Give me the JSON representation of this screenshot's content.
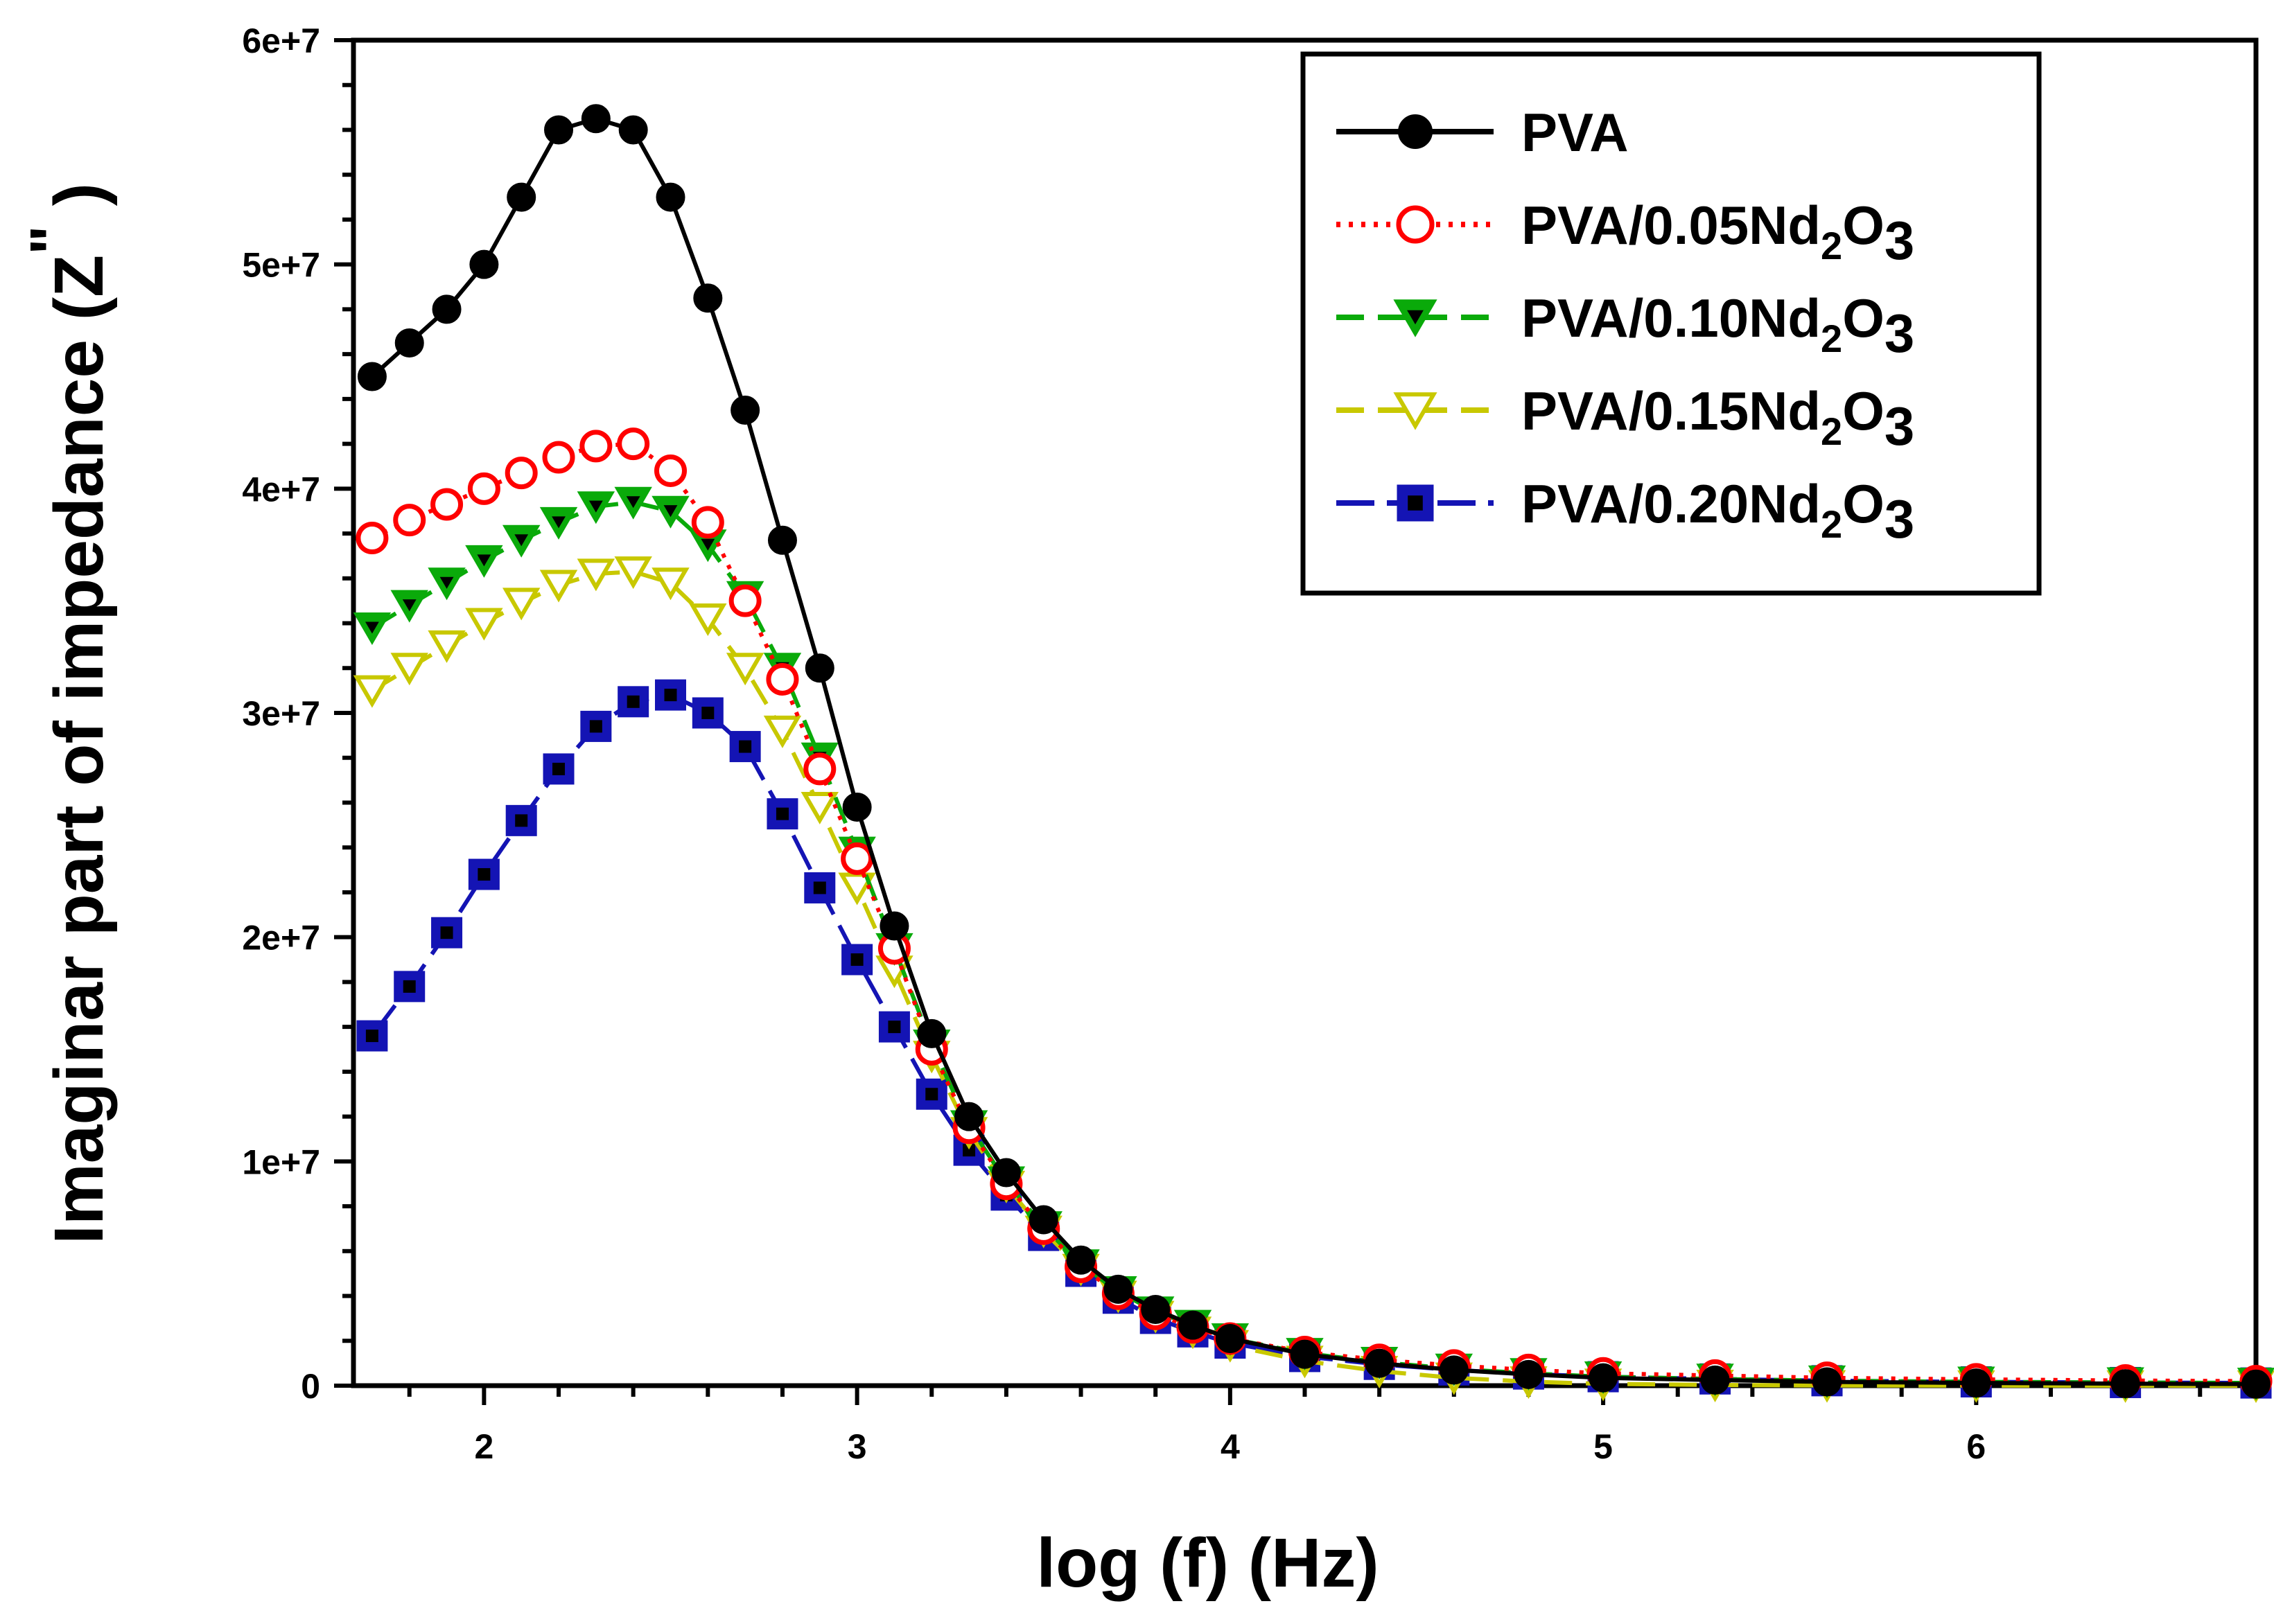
{
  "chart_data": {
    "type": "line",
    "title": "",
    "xlabel": "log (f) (Hz)",
    "ylabel_main": "Imaginar part of impedance (Z",
    "ylabel_sup": "\"",
    "ylabel_close": ")",
    "xlim": [
      1.65,
      6.75
    ],
    "ylim": [
      0,
      60000000
    ],
    "x_ticks": [
      2,
      3,
      4,
      5,
      6
    ],
    "x_tick_labels": [
      "2",
      "3",
      "4",
      "5",
      "6"
    ],
    "y_ticks": [
      0,
      10000000,
      20000000,
      30000000,
      40000000,
      50000000,
      60000000
    ],
    "y_tick_labels": [
      "0",
      "1e+7",
      "2e+7",
      "3e+7",
      "4e+7",
      "5e+7",
      "6e+7"
    ],
    "legend_position": "top-right",
    "x": [
      1.7,
      1.8,
      1.9,
      2.0,
      2.1,
      2.2,
      2.3,
      2.4,
      2.5,
      2.6,
      2.7,
      2.8,
      2.9,
      3.0,
      3.1,
      3.2,
      3.3,
      3.4,
      3.5,
      3.6,
      3.7,
      3.8,
      3.9,
      4.0,
      4.2,
      4.4,
      4.6,
      4.8,
      5.0,
      5.3,
      5.6,
      6.0,
      6.4,
      6.75
    ],
    "series": [
      {
        "name": "PVA",
        "label_main": "PVA",
        "label_sub": "",
        "label_tail": "",
        "color": "#000000",
        "marker": "circle",
        "filled": true,
        "line": "solid",
        "values": [
          45000000,
          46500000,
          48000000,
          50000000,
          53000000,
          56000000,
          56500000,
          56000000,
          53000000,
          48500000,
          43500000,
          37700000,
          32000000,
          25800000,
          20500000,
          15700000,
          12000000,
          9500000,
          7400000,
          5600000,
          4300000,
          3400000,
          2700000,
          2100000,
          1400000,
          1000000,
          700000,
          500000,
          350000,
          250000,
          170000,
          120000,
          90000,
          70000
        ]
      },
      {
        "name": "PVA/0.05Nd2O3",
        "label_main": "PVA/0.05Nd",
        "label_sub": "2",
        "label_tail": "O",
        "label_sub2": "3",
        "color": "#ff0000",
        "marker": "circle",
        "filled": false,
        "line": "dotted",
        "values": [
          37800000,
          38600000,
          39300000,
          40000000,
          40700000,
          41400000,
          41900000,
          42000000,
          40800000,
          38500000,
          35000000,
          31500000,
          27500000,
          23500000,
          19500000,
          15000000,
          11500000,
          9000000,
          7000000,
          5300000,
          4100000,
          3200000,
          2600000,
          2100000,
          1500000,
          1150000,
          900000,
          700000,
          550000,
          450000,
          350000,
          280000,
          230000,
          200000
        ]
      },
      {
        "name": "PVA/0.10Nd2O3",
        "label_main": "PVA/0.10Nd",
        "label_sub": "2",
        "label_tail": "O",
        "label_sub2": "3",
        "color": "#0aaa0a",
        "marker": "triangle-down",
        "filled": true,
        "fill": "#0aaa0a",
        "inner": "#000000",
        "line": "dashed",
        "values": [
          33800000,
          34800000,
          35800000,
          36800000,
          37700000,
          38500000,
          39200000,
          39400000,
          39000000,
          37500000,
          35200000,
          32000000,
          28000000,
          23800000,
          19500000,
          15200000,
          11600000,
          9100000,
          7100000,
          5400000,
          4200000,
          3300000,
          2700000,
          2100000,
          1450000,
          1050000,
          750000,
          550000,
          400000,
          300000,
          220000,
          170000,
          140000,
          120000
        ]
      },
      {
        "name": "PVA/0.15Nd2O3",
        "label_main": "PVA/0.15Nd",
        "label_sub": "2",
        "label_tail": "O",
        "label_sub2": "3",
        "color": "#c8c800",
        "marker": "triangle-down",
        "filled": false,
        "line": "dashed",
        "values": [
          31000000,
          32000000,
          33000000,
          34000000,
          34900000,
          35700000,
          36200000,
          36300000,
          35800000,
          34200000,
          32000000,
          29200000,
          25800000,
          22200000,
          18500000,
          14700000,
          11300000,
          8900000,
          6900000,
          5200000,
          4000000,
          3100000,
          2400000,
          1800000,
          1100000,
          650000,
          350000,
          180000,
          80000,
          30000,
          10000,
          5000,
          2000,
          0
        ]
      },
      {
        "name": "PVA/0.20Nd2O3",
        "label_main": "PVA/0.20Nd",
        "label_sub": "2",
        "label_tail": "O",
        "label_sub2": "3",
        "color": "#1414b4",
        "marker": "square",
        "filled": true,
        "fill": "#1414b4",
        "inner": "#000000",
        "line": "long-dash",
        "values": [
          15600000,
          17800000,
          20200000,
          22800000,
          25200000,
          27500000,
          29400000,
          30500000,
          30800000,
          30000000,
          28500000,
          25500000,
          22200000,
          19000000,
          16000000,
          13000000,
          10500000,
          8500000,
          6700000,
          5100000,
          3900000,
          3000000,
          2400000,
          1900000,
          1300000,
          950000,
          700000,
          520000,
          400000,
          300000,
          220000,
          170000,
          140000,
          120000
        ]
      }
    ]
  }
}
